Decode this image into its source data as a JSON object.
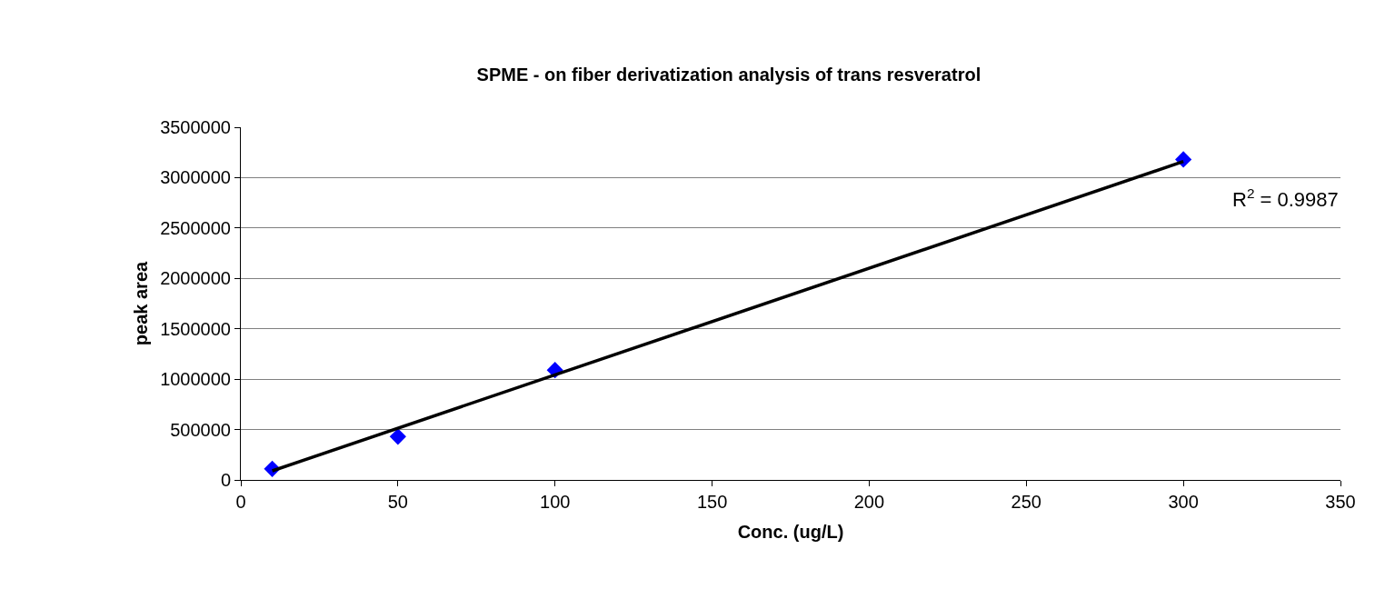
{
  "chart_data": {
    "type": "scatter",
    "title": "SPME - on fiber derivatization analysis of trans resveratrol",
    "xlabel": "Conc. (ug/L)",
    "ylabel": "peak area",
    "series": [
      {
        "color": "#0000ff",
        "x": [
          10,
          50,
          100,
          300
        ],
        "values": [
          110000,
          430000,
          1090000,
          3180000
        ],
        "marker": "diamond"
      },
      {
        "type": "line",
        "color": "#000000",
        "x": [
          10,
          300
        ],
        "values": [
          90000,
          3160000
        ],
        "marker": "none",
        "line_style": "solid"
      }
    ],
    "annotations": [
      "R$^{2}$ = 0.9987"
    ],
    "xlim": [
      0,
      350
    ],
    "xticks": [
      0,
      50,
      100,
      150,
      200,
      250,
      300,
      350
    ],
    "ylim": [
      0,
      3500000
    ],
    "yticks": [
      0,
      500000,
      1000000,
      1500000,
      2000000,
      2500000,
      3000000,
      3500000
    ],
    "grid": "y"
  }
}
